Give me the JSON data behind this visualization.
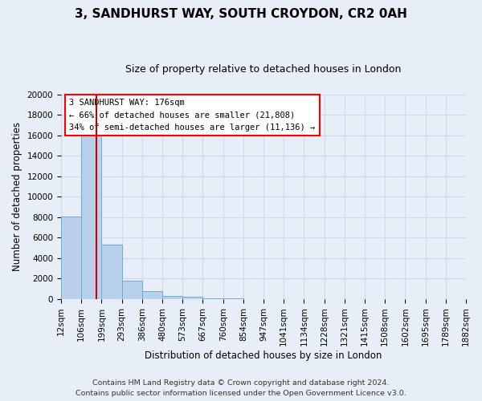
{
  "title": "3, SANDHURST WAY, SOUTH CROYDON, CR2 0AH",
  "subtitle": "Size of property relative to detached houses in London",
  "xlabel": "Distribution of detached houses by size in London",
  "ylabel": "Number of detached properties",
  "bin_labels": [
    "12sqm",
    "106sqm",
    "199sqm",
    "293sqm",
    "386sqm",
    "480sqm",
    "573sqm",
    "667sqm",
    "760sqm",
    "854sqm",
    "947sqm",
    "1041sqm",
    "1134sqm",
    "1228sqm",
    "1321sqm",
    "1415sqm",
    "1508sqm",
    "1602sqm",
    "1695sqm",
    "1789sqm",
    "1882sqm"
  ],
  "bar_values": [
    8100,
    16500,
    5300,
    1800,
    750,
    300,
    200,
    100,
    60,
    0,
    0,
    0,
    0,
    0,
    0,
    0,
    0,
    0,
    0,
    0
  ],
  "bar_color": "#b8d0ea",
  "bar_edge_color": "#6aaed6",
  "vline_color": "#cc0000",
  "annotation_box_text": "3 SANDHURST WAY: 176sqm\n← 66% of detached houses are smaller (21,808)\n34% of semi-detached houses are larger (11,136) →",
  "ylim": [
    0,
    20000
  ],
  "yticks": [
    0,
    2000,
    4000,
    6000,
    8000,
    10000,
    12000,
    14000,
    16000,
    18000,
    20000
  ],
  "footer1": "Contains HM Land Registry data © Crown copyright and database right 2024.",
  "footer2": "Contains public sector information licensed under the Open Government Licence v3.0.",
  "bg_color": "#e8eef8",
  "plot_bg_color": "#e8eef8",
  "grid_color": "#d0d8ec",
  "title_fontsize": 11,
  "subtitle_fontsize": 9,
  "axis_label_fontsize": 8.5,
  "tick_fontsize": 7.5,
  "annotation_fontsize": 7.5,
  "footer_fontsize": 6.8
}
